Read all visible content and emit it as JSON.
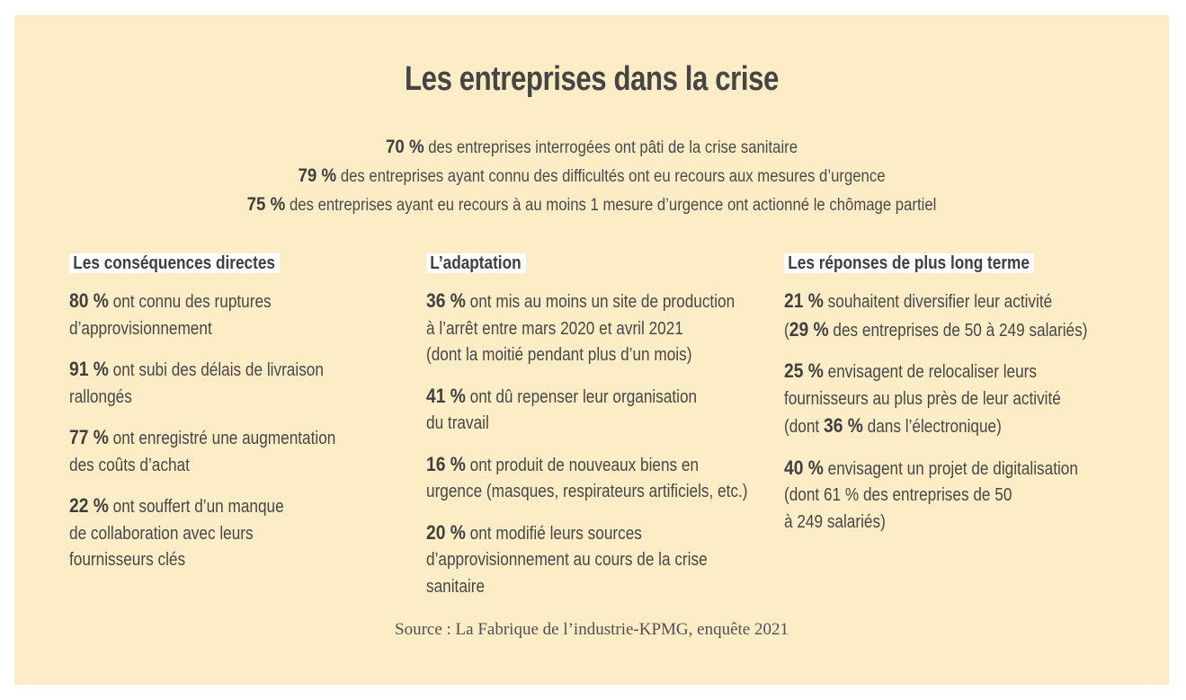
{
  "title": "Les entreprises dans la crise",
  "headlines": [
    {
      "pct": "70 %",
      "text": " des entreprises interrogées ont pâti de la crise sanitaire"
    },
    {
      "pct": "79 %",
      "text": " des entreprises ayant connu des difficultés ont eu recours aux mesures d’urgence"
    },
    {
      "pct": "75 %",
      "text": " des entreprises ayant eu recours à au moins 1 mesure d’urgence ont actionné le chômage partiel"
    }
  ],
  "columns": [
    {
      "title": "Les conséquences directes",
      "items": [
        {
          "pct": "80 %",
          "l1": " ont connu des ruptures",
          "l2": "d’approvisionnement"
        },
        {
          "pct": "91 %",
          "l1": " ont subi des délais de livraison",
          "l2": "rallongés"
        },
        {
          "pct": "77 %",
          "l1": " ont enregistré une augmentation",
          "l2": "des coûts d’achat"
        },
        {
          "pct": "22 %",
          "l1": " ont souffert d’un manque",
          "l2": "de collaboration avec leurs",
          "l3": "fournisseurs clés"
        }
      ]
    },
    {
      "title": "L’adaptation",
      "items": [
        {
          "pct": "36 %",
          "l1": " ont mis au moins un site de production",
          "l2": "à l’arrêt entre mars 2020 et avril 2021",
          "l3": "(dont la moitié pendant plus d’un mois)"
        },
        {
          "pct": "41 %",
          "l1": " ont dû repenser leur organisation",
          "l2": "du travail"
        },
        {
          "pct": "16 %",
          "l1": " ont produit de nouveaux biens en",
          "l2": "urgence (masques, respirateurs artificiels, etc.)"
        },
        {
          "pct": "20 %",
          "l1": " ont modifié leurs sources",
          "l2": "d’approvisionnement au cours de la crise",
          "l3": "sanitaire"
        }
      ]
    },
    {
      "title": "Les réponses de plus long terme",
      "items": [
        {
          "pct": "21 %",
          "l1": " souhaitent diversifier leur activité",
          "l2a": "(",
          "l2pct": "29 %",
          "l2b": " des entreprises de 50 à 249 salariés)"
        },
        {
          "pct": "25 %",
          "l1": " envisagent de relocaliser leurs",
          "l2": "fournisseurs au plus près de leur activité",
          "l3a": "(dont ",
          "l3pct": "36 %",
          "l3b": " dans l’électronique)"
        },
        {
          "pct": "40 %",
          "l1": " envisagent un projet de digitalisation",
          "l2": "(dont 61 % des entreprises de 50",
          "l3": "à 249 salariés)"
        }
      ]
    }
  ],
  "source": "Source : La Fabrique de l’industrie-KPMG, enquête 2021"
}
